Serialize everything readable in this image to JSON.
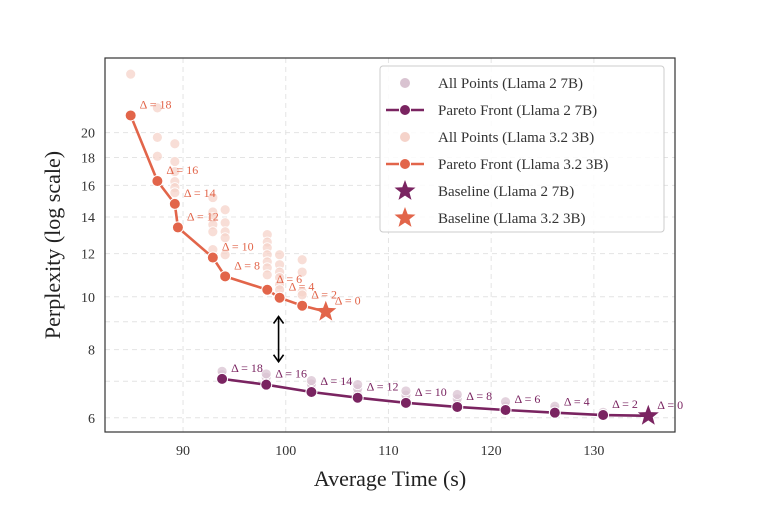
{
  "chart_data": {
    "type": "line",
    "xlabel": "Average Time (s)",
    "ylabel": "Perplexity (log scale)",
    "xlim": [
      82.4,
      137.9
    ],
    "ylim": [
      5.65,
      27.4
    ],
    "yscale": "log",
    "xticks": [
      90,
      100,
      110,
      120,
      130
    ],
    "yticks": [
      6,
      8,
      10,
      12,
      14,
      16,
      18,
      20
    ],
    "ygrid_minor": [
      7,
      9
    ],
    "grid": true,
    "legend_position": "top-right",
    "colors": {
      "llama2": "#7a2461",
      "llama32": "#e2654a",
      "llama2_light": "#d9c3d1",
      "llama32_light": "#f5d3ca"
    },
    "series": [
      {
        "name": "All Points (Llama 2 7B)",
        "kind": "scatter",
        "color_key": "llama2_light",
        "points": [
          [
            93.8,
            7.07
          ],
          [
            93.8,
            7.2
          ],
          [
            93.8,
            7.3
          ],
          [
            98.1,
            6.9
          ],
          [
            98.1,
            7.0
          ],
          [
            98.1,
            7.12
          ],
          [
            98.1,
            7.22
          ],
          [
            102.5,
            6.69
          ],
          [
            102.5,
            6.8
          ],
          [
            102.5,
            6.92
          ],
          [
            102.5,
            7.02
          ],
          [
            107.0,
            6.53
          ],
          [
            107.0,
            6.65
          ],
          [
            107.0,
            6.78
          ],
          [
            107.0,
            6.9
          ],
          [
            111.7,
            6.39
          ],
          [
            111.7,
            6.5
          ],
          [
            111.7,
            6.6
          ],
          [
            111.7,
            6.72
          ],
          [
            116.7,
            6.28
          ],
          [
            116.7,
            6.38
          ],
          [
            116.7,
            6.5
          ],
          [
            116.7,
            6.62
          ],
          [
            121.4,
            6.2
          ],
          [
            121.4,
            6.3
          ],
          [
            121.4,
            6.42
          ],
          [
            126.2,
            6.13
          ],
          [
            126.2,
            6.22
          ],
          [
            126.2,
            6.3
          ],
          [
            130.9,
            6.07
          ],
          [
            130.9,
            6.14
          ]
        ]
      },
      {
        "name": "Pareto Front (Llama 2 7B)",
        "kind": "line",
        "color_key": "llama2",
        "x": [
          93.8,
          98.1,
          102.5,
          107.0,
          111.7,
          116.7,
          121.4,
          126.2,
          130.9
        ],
        "y": [
          7.07,
          6.9,
          6.69,
          6.53,
          6.39,
          6.28,
          6.2,
          6.13,
          6.07
        ],
        "labels": [
          "Δ = 18",
          "Δ = 16",
          "Δ = 14",
          "Δ = 12",
          "Δ = 10",
          "Δ = 8",
          "Δ = 6",
          "Δ = 4",
          "Δ = 2"
        ]
      },
      {
        "name": "All Points (Llama 3.2 3B)",
        "kind": "scatter",
        "color_key": "llama32_light",
        "points": [
          [
            84.9,
            25.6
          ],
          [
            87.5,
            22.2
          ],
          [
            87.5,
            19.6
          ],
          [
            87.5,
            18.1
          ],
          [
            89.2,
            19.08
          ],
          [
            89.2,
            17.7
          ],
          [
            89.2,
            16.96
          ],
          [
            89.2,
            16.26
          ],
          [
            89.2,
            15.85
          ],
          [
            89.2,
            15.51
          ],
          [
            89.2,
            14.88
          ],
          [
            92.9,
            15.2
          ],
          [
            92.9,
            14.3
          ],
          [
            92.9,
            13.96
          ],
          [
            92.9,
            13.56
          ],
          [
            92.9,
            13.16
          ],
          [
            92.9,
            12.2
          ],
          [
            94.1,
            14.44
          ],
          [
            94.1,
            13.67
          ],
          [
            94.1,
            13.16
          ],
          [
            94.1,
            12.83
          ],
          [
            94.1,
            11.94
          ],
          [
            98.2,
            13.0
          ],
          [
            98.2,
            12.6
          ],
          [
            98.2,
            12.3
          ],
          [
            98.2,
            11.94
          ],
          [
            98.2,
            11.59
          ],
          [
            98.2,
            11.3
          ],
          [
            98.2,
            10.97
          ],
          [
            99.4,
            11.94
          ],
          [
            99.4,
            11.45
          ],
          [
            99.4,
            11.1
          ],
          [
            99.4,
            10.84
          ],
          [
            99.4,
            10.52
          ],
          [
            99.4,
            10.3
          ],
          [
            101.6,
            11.69
          ],
          [
            101.6,
            11.1
          ],
          [
            101.6,
            10.21
          ],
          [
            101.6,
            10.08
          ]
        ]
      },
      {
        "name": "Pareto Front (Llama 3.2 3B)",
        "kind": "line",
        "color_key": "llama32",
        "x": [
          84.9,
          87.5,
          89.2,
          89.5,
          92.9,
          94.1,
          98.2,
          99.4,
          101.6
        ],
        "y": [
          21.5,
          16.3,
          14.8,
          13.4,
          11.8,
          10.9,
          10.3,
          9.96,
          9.63
        ],
        "labels": [
          "Δ = 18",
          "Δ = 16",
          "Δ = 14",
          "Δ = 12",
          "Δ = 10",
          "Δ = 8",
          "Δ = 6",
          "Δ = 4",
          "Δ = 2"
        ]
      },
      {
        "name": "Baseline (Llama 2 7B)",
        "kind": "star",
        "color_key": "llama2",
        "x": 135.3,
        "y": 6.05,
        "label": "Δ = 0"
      },
      {
        "name": "Baseline (Llama 3.2 3B)",
        "kind": "star",
        "color_key": "llama32",
        "x": 103.9,
        "y": 9.39,
        "label": "Δ = 0"
      }
    ],
    "annotations": [
      {
        "type": "double-arrow",
        "x": 99.3,
        "y_from": 9.2,
        "y_to": 7.6
      }
    ]
  }
}
